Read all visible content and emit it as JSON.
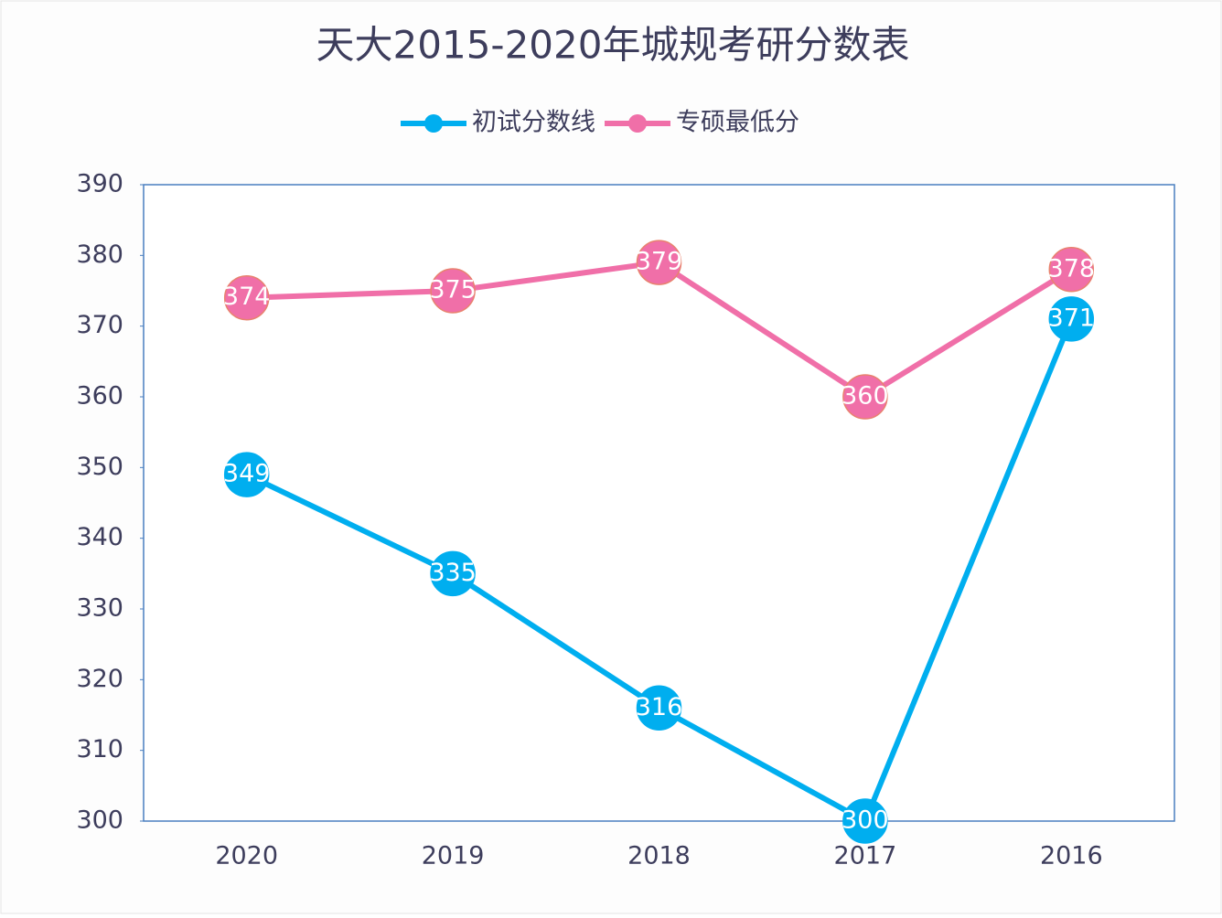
{
  "chart_data": {
    "type": "line",
    "title": "天大2015-2020年城规考研分数表",
    "categories": [
      "2020",
      "2019",
      "2018",
      "2017",
      "2016"
    ],
    "series": [
      {
        "name": "初试分数线",
        "color": "#00aeef",
        "values": [
          349,
          335,
          316,
          300,
          371
        ]
      },
      {
        "name": "专硕最低分",
        "color": "#f06fa8",
        "values": [
          374,
          375,
          379,
          360,
          378
        ]
      }
    ],
    "ylim": [
      300,
      390
    ],
    "yticks": [
      300,
      310,
      320,
      330,
      340,
      350,
      360,
      370,
      380,
      390
    ],
    "legend": "top",
    "data_labels": true
  }
}
